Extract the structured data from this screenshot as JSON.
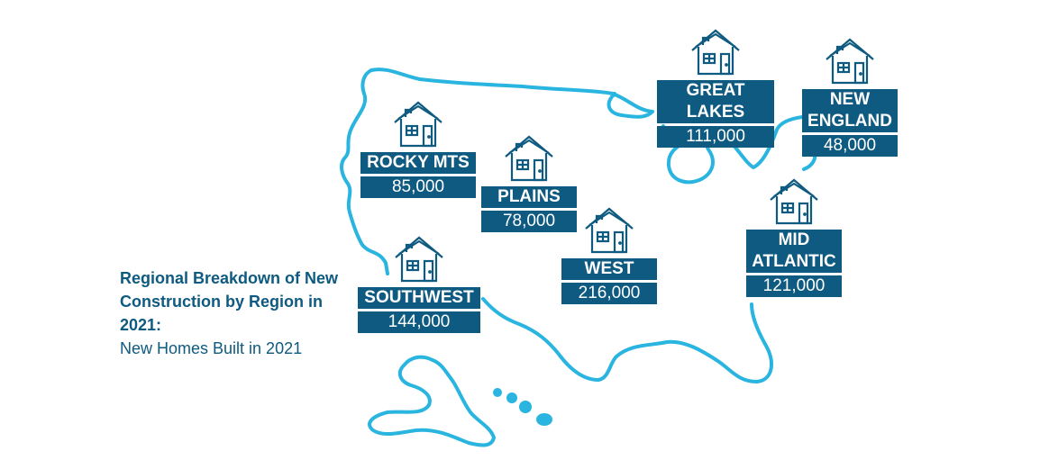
{
  "caption": {
    "title": "Regional Breakdown of New Construction by Region in 2021:",
    "subtitle": "New Homes Built in 2021"
  },
  "regions": [
    {
      "id": "great-lakes",
      "name": "GREAT LAKES",
      "value": "111,000"
    },
    {
      "id": "new-england",
      "name": "NEW\nENGLAND",
      "value": "48,000"
    },
    {
      "id": "rocky-mts",
      "name": "ROCKY MTS",
      "value": "85,000"
    },
    {
      "id": "plains",
      "name": "PLAINS",
      "value": "78,000"
    },
    {
      "id": "west",
      "name": "WEST",
      "value": "216,000"
    },
    {
      "id": "mid-atlantic",
      "name": "MID\nATLANTIC",
      "value": "121,000"
    },
    {
      "id": "southwest",
      "name": "SOUTHWEST",
      "value": "144,000"
    }
  ],
  "colors": {
    "map_outline": "#29b5e0",
    "label_bg": "#0e5a80",
    "text": "#0e5a80"
  },
  "icons": [
    "house-icon"
  ]
}
